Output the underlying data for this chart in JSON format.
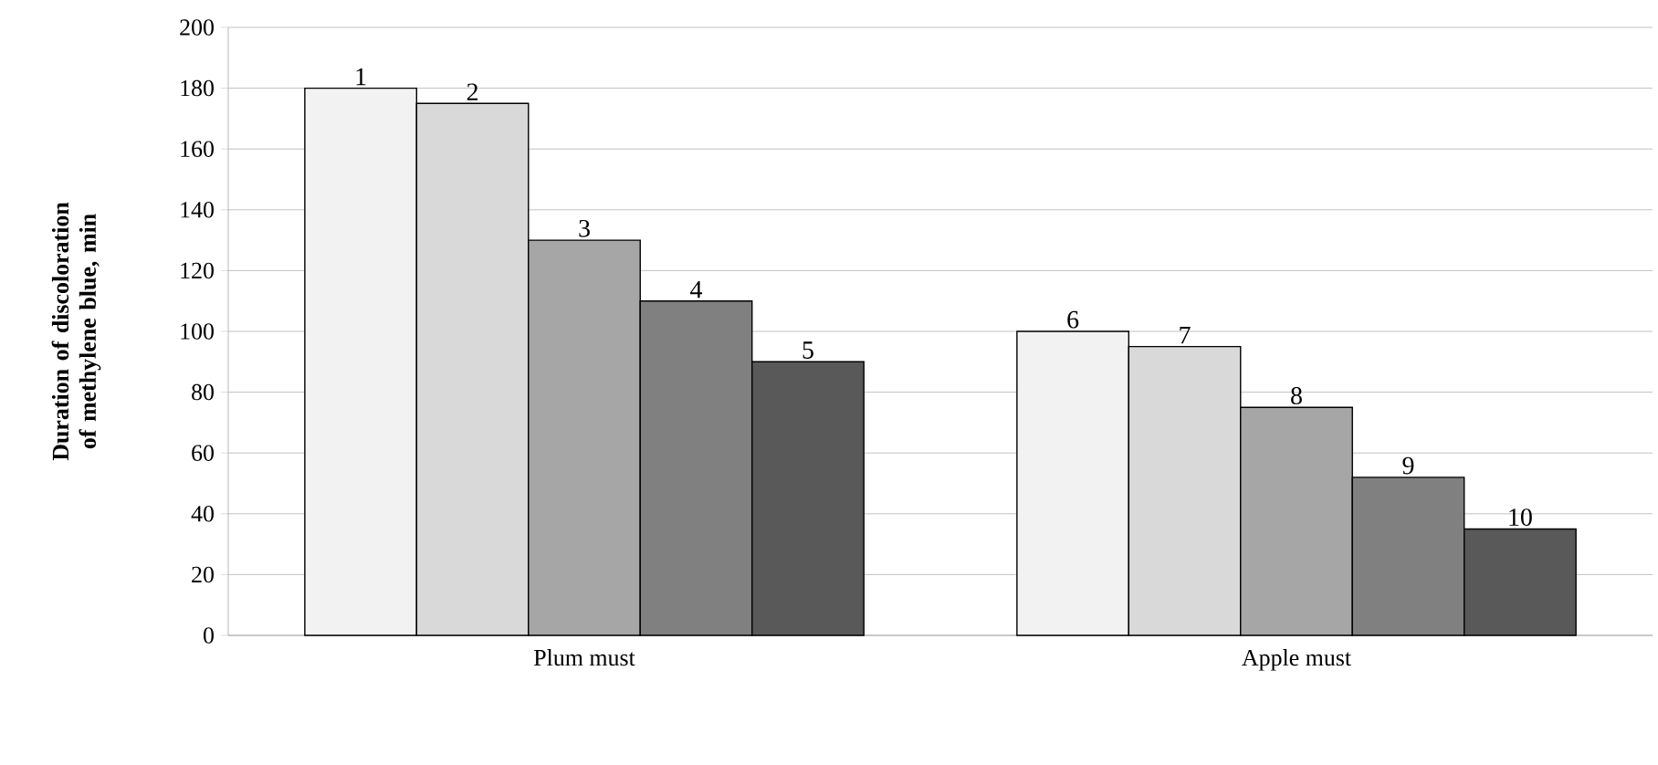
{
  "chart_data": {
    "type": "bar",
    "ylabel": "Duration of discoloration of methylene blue, min",
    "categories": [
      "Plum must",
      "Apple must"
    ],
    "series": [
      {
        "color": "#f2f2f2",
        "values": [
          180,
          100
        ]
      },
      {
        "color": "#d9d9d9",
        "values": [
          175,
          95
        ]
      },
      {
        "color": "#a6a6a6",
        "values": [
          130,
          75
        ]
      },
      {
        "color": "#808080",
        "values": [
          110,
          52
        ]
      },
      {
        "color": "#595959",
        "values": [
          90,
          35
        ]
      }
    ],
    "annotations": [
      "1",
      "2",
      "3",
      "4",
      "5",
      "6",
      "7",
      "8",
      "9",
      "10"
    ],
    "ylim": [
      0,
      200
    ],
    "yticks": [
      0,
      20,
      40,
      60,
      80,
      100,
      120,
      140,
      160,
      180,
      200
    ],
    "grid": "y"
  }
}
